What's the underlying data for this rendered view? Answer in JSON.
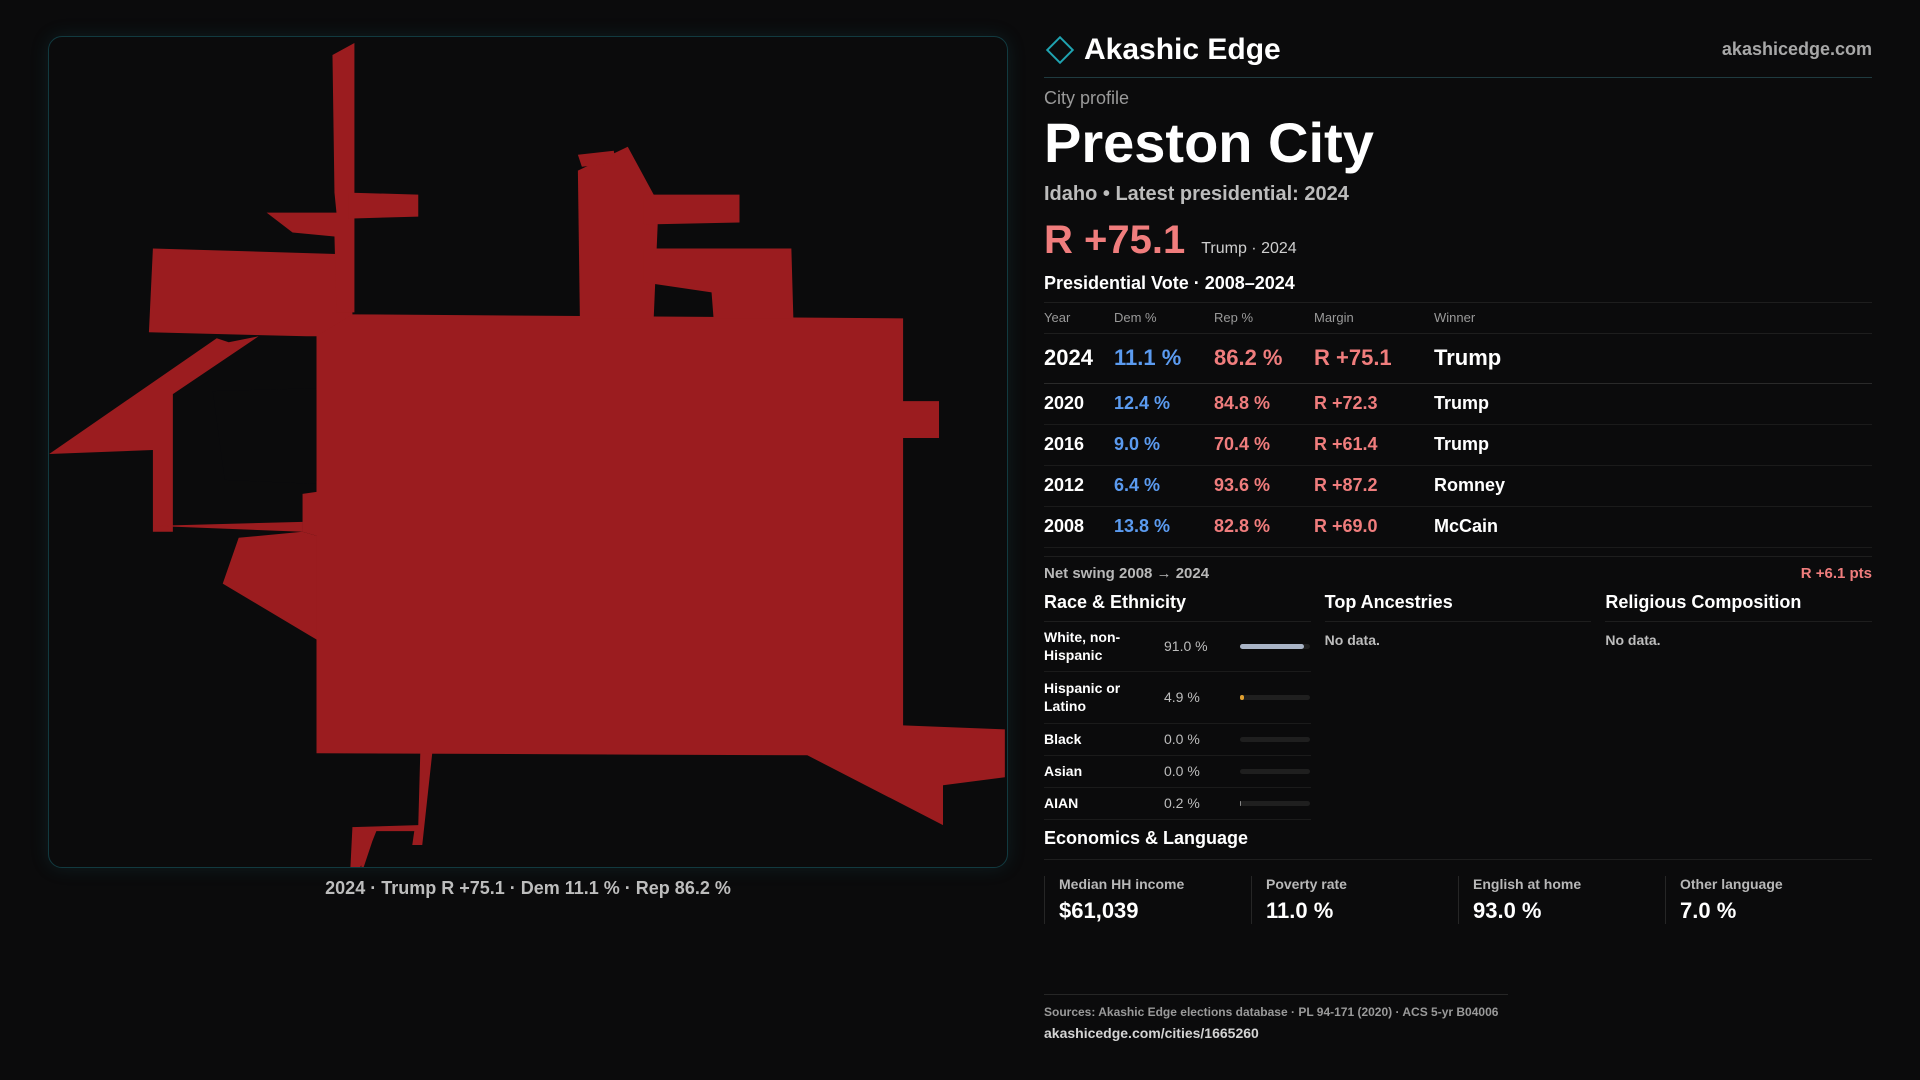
{
  "map": {
    "region_color": "#9b1c1f",
    "caption": "2024 · Trump R +75.1 · Dem 11.1 % · Rep 86.2 %"
  },
  "brand": {
    "name": "Akashic Edge",
    "url": "akashicedge.com",
    "icon": "diamond-icon",
    "accent": "#1fa3b0"
  },
  "profile": {
    "eyebrow": "City profile",
    "title": "Preston City",
    "subline": "Idaho • Latest presidential: 2024",
    "margin": "R +75.1",
    "margin_sub": "Trump · 2024"
  },
  "votes": {
    "title": "Presidential Vote · 2008–2024",
    "headers": {
      "year": "Year",
      "dem": "Dem %",
      "rep": "Rep %",
      "margin": "Margin",
      "winner": "Winner"
    },
    "rows": [
      {
        "year": "2024",
        "dem": "11.1 %",
        "rep": "86.2 %",
        "margin": "R +75.1",
        "winner": "Trump"
      },
      {
        "year": "2020",
        "dem": "12.4 %",
        "rep": "84.8 %",
        "margin": "R +72.3",
        "winner": "Trump"
      },
      {
        "year": "2016",
        "dem": "9.0 %",
        "rep": "70.4 %",
        "margin": "R +61.4",
        "winner": "Trump"
      },
      {
        "year": "2012",
        "dem": "6.4 %",
        "rep": "93.6 %",
        "margin": "R +87.2",
        "winner": "Romney"
      },
      {
        "year": "2008",
        "dem": "13.8 %",
        "rep": "82.8 %",
        "margin": "R +69.0",
        "winner": "McCain"
      }
    ],
    "colors": {
      "dem": "#5b9bf0",
      "rep": "#f07d7d"
    }
  },
  "swing": {
    "label": "Net swing 2008 → 2024",
    "value": "R +6.1 pts"
  },
  "race": {
    "title": "Race & Ethnicity",
    "rows": [
      {
        "label": "White, non-Hispanic",
        "pct": "91.0 %",
        "fraction": 0.91,
        "color": "#a9b4c6"
      },
      {
        "label": "Hispanic or Latino",
        "pct": "4.9 %",
        "fraction": 0.049,
        "color": "#e0a030"
      },
      {
        "label": "Black",
        "pct": "0.0 %",
        "fraction": 0.0,
        "color": "#888888"
      },
      {
        "label": "Asian",
        "pct": "0.0 %",
        "fraction": 0.0,
        "color": "#888888"
      },
      {
        "label": "AIAN",
        "pct": "0.2 %",
        "fraction": 0.002,
        "color": "#888888"
      }
    ]
  },
  "ancestries": {
    "title": "Top Ancestries",
    "empty": "No data."
  },
  "religion": {
    "title": "Religious Composition",
    "empty": "No data."
  },
  "economics": {
    "title": "Economics & Language",
    "cells": [
      {
        "label": "Median HH income",
        "value": "$61,039"
      },
      {
        "label": "Poverty rate",
        "value": "11.0 %"
      },
      {
        "label": "English at home",
        "value": "93.0 %"
      },
      {
        "label": "Other language",
        "value": "7.0 %"
      }
    ]
  },
  "sources": {
    "line": "Sources: Akashic Edge elections database · PL 94-171 (2020) · ACS 5-yr B04006",
    "url": "akashicedge.com/cities/1665260"
  }
}
